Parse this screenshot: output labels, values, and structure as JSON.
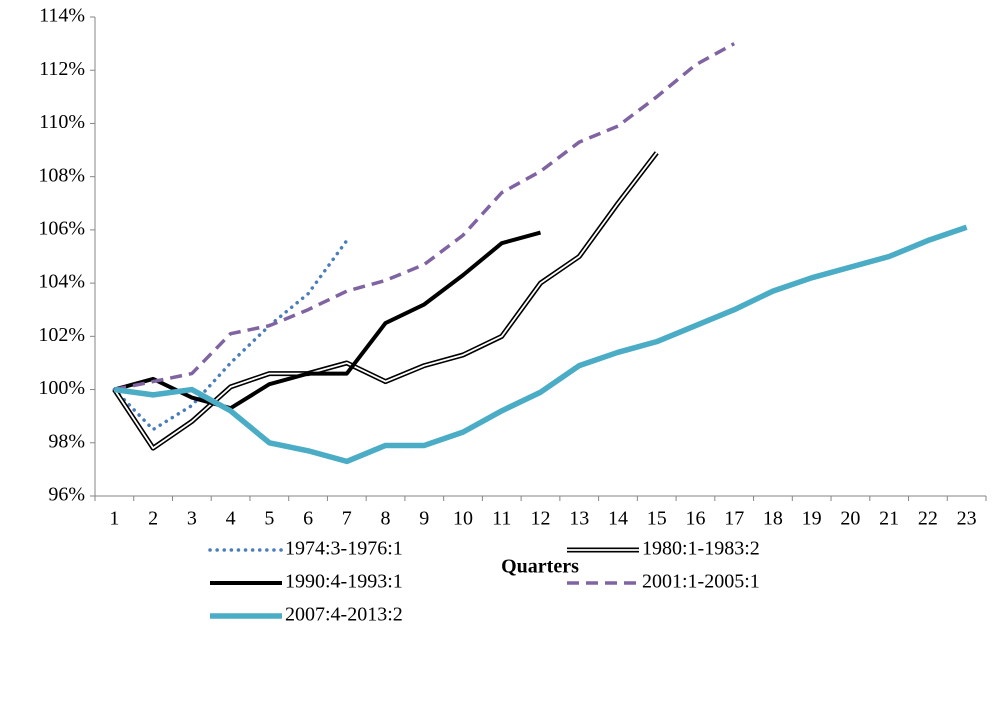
{
  "chart_data": {
    "type": "line",
    "x_label": "Quarters",
    "categories": [
      "1",
      "2",
      "3",
      "4",
      "5",
      "6",
      "7",
      "8",
      "9",
      "10",
      "11",
      "12",
      "13",
      "14",
      "15",
      "16",
      "17",
      "18",
      "19",
      "20",
      "21",
      "22",
      "23"
    ],
    "ylim": [
      96,
      114
    ],
    "yticks": [
      {
        "value": 96,
        "label": "96%"
      },
      {
        "value": 98,
        "label": "98%"
      },
      {
        "value": 100,
        "label": "100%"
      },
      {
        "value": 102,
        "label": "102%"
      },
      {
        "value": 104,
        "label": "104%"
      },
      {
        "value": 106,
        "label": "106%"
      },
      {
        "value": 108,
        "label": "108%"
      },
      {
        "value": 110,
        "label": "110%"
      },
      {
        "value": 112,
        "label": "112%"
      },
      {
        "value": 114,
        "label": "114%"
      }
    ],
    "series": [
      {
        "name": "1974:3-1976:1",
        "color": "#4a7ebb",
        "line_style": "dotted",
        "values": [
          100,
          98.5,
          99.4,
          101.0,
          102.4,
          103.6,
          105.6,
          null,
          null,
          null,
          null,
          null,
          null,
          null,
          null,
          null,
          null,
          null,
          null,
          null,
          null,
          null,
          null
        ]
      },
      {
        "name": "1980:1-1983:2",
        "color": "#000000",
        "line_style": "double",
        "values": [
          100,
          97.8,
          98.8,
          100.1,
          100.6,
          100.6,
          101.0,
          100.3,
          100.9,
          101.3,
          102.0,
          104.0,
          105.0,
          107.0,
          108.9,
          null,
          null,
          null,
          null,
          null,
          null,
          null,
          null
        ]
      },
      {
        "name": "1990:4-1993:1",
        "color": "#000000",
        "line_style": "solid",
        "values": [
          100,
          100.4,
          99.7,
          99.3,
          100.2,
          100.6,
          100.6,
          102.5,
          103.2,
          104.3,
          105.5,
          105.9,
          null,
          null,
          null,
          null,
          null,
          null,
          null,
          null,
          null,
          null,
          null
        ]
      },
      {
        "name": "2001:1-2005:1",
        "color": "#8064a2",
        "line_style": "dashed",
        "values": [
          100,
          100.3,
          100.6,
          102.1,
          102.4,
          103.0,
          103.7,
          104.1,
          104.7,
          105.8,
          107.4,
          108.2,
          109.3,
          109.9,
          111.0,
          112.2,
          113.0,
          null,
          null,
          null,
          null,
          null,
          null
        ]
      },
      {
        "name": "2007:4-2013:2",
        "color": "#4bacc6",
        "line_style": "thick",
        "values": [
          100,
          99.8,
          100.0,
          99.2,
          98.0,
          97.7,
          97.3,
          97.9,
          97.9,
          98.4,
          99.2,
          99.9,
          100.9,
          101.4,
          101.8,
          102.4,
          103.0,
          103.7,
          104.2,
          104.6,
          105.0,
          105.6,
          106.1
        ]
      }
    ]
  }
}
